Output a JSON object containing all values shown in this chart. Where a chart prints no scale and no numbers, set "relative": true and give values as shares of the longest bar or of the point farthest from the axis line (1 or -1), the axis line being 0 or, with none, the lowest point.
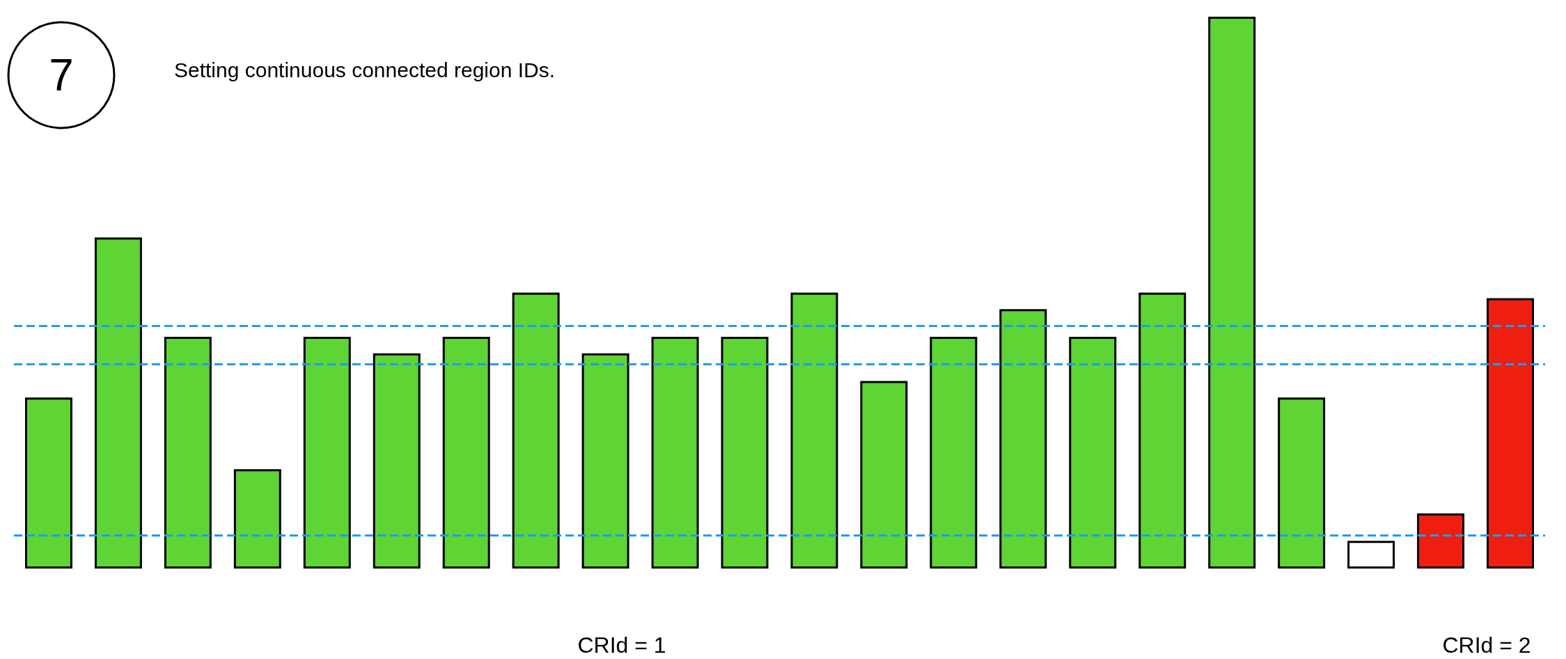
{
  "chart_data": {
    "type": "bar",
    "relative": true,
    "title": "Setting continuous connected region IDs.",
    "categories": [
      null,
      null,
      null,
      null,
      null,
      null,
      null,
      null,
      null,
      null,
      null,
      null,
      null,
      null,
      null,
      null,
      null,
      null,
      null,
      null,
      null,
      null
    ],
    "values": [
      0.31,
      0.6,
      0.42,
      0.18,
      0.42,
      0.39,
      0.42,
      0.5,
      0.39,
      0.42,
      0.42,
      0.5,
      0.34,
      0.42,
      0.47,
      0.42,
      0.5,
      1,
      0.31,
      0.05,
      0.1,
      0.49
    ],
    "colors": [
      "#5ed435",
      "#5ed435",
      "#5ed435",
      "#5ed435",
      "#5ed435",
      "#5ed435",
      "#5ed435",
      "#5ed435",
      "#5ed435",
      "#5ed435",
      "#5ed435",
      "#5ed435",
      "#5ed435",
      "#5ed435",
      "#5ed435",
      "#5ed435",
      "#5ed435",
      "#5ed435",
      "#5ed435",
      "#ffffff",
      "#ee1f10",
      "#ee1f10"
    ],
    "ref_lines": [
      {
        "axis": "y",
        "value": 0.44,
        "color": "#1a9ff0",
        "line_style": "dashed"
      },
      {
        "axis": "y",
        "value": 0.37,
        "color": "#1a9ff0",
        "line_style": "dashed"
      },
      {
        "axis": "y",
        "value": 0.06,
        "color": "#1a9ff0",
        "line_style": "dashed"
      }
    ],
    "annotations": [
      "7",
      "CRId = 1",
      "CRId = 2"
    ]
  }
}
